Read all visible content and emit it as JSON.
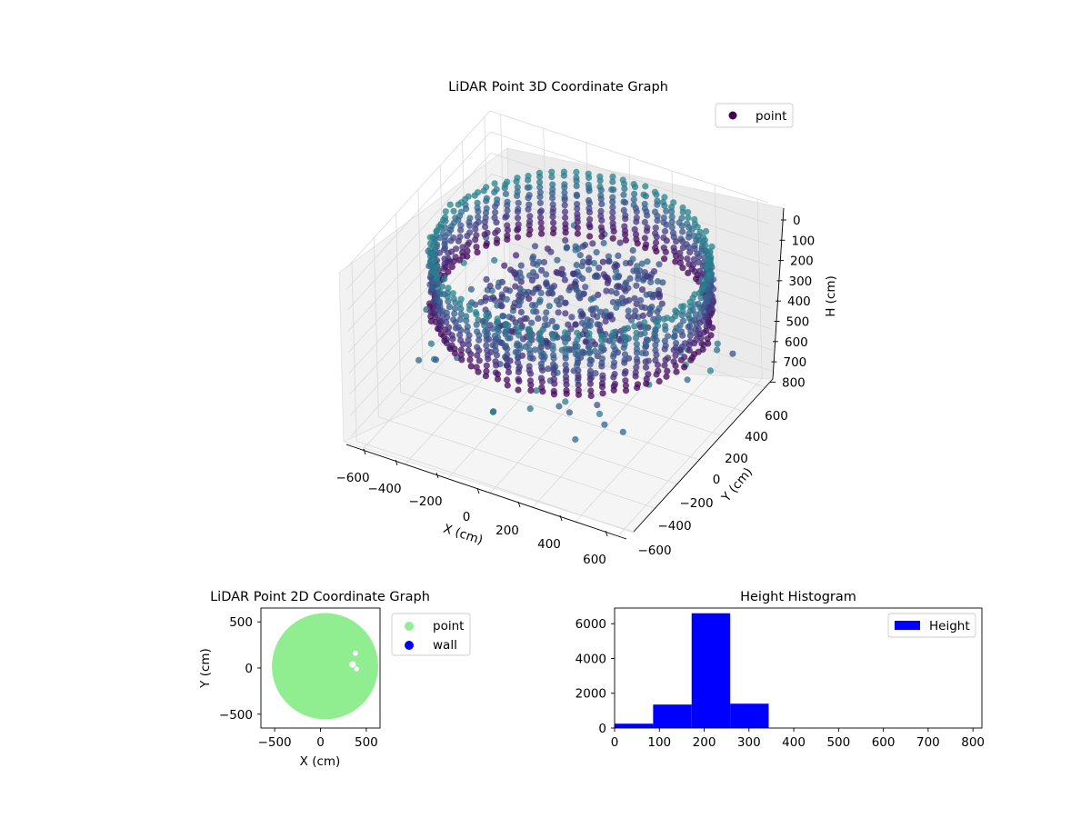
{
  "chart_data": [
    {
      "type": "scatter",
      "projection": "3d",
      "title": "LiDAR Point 3D Coordinate Graph",
      "xlabel": "X (cm)",
      "ylabel": "Y (cm)",
      "zlabel": "H (cm)",
      "xlim": [
        -650,
        650
      ],
      "ylim": [
        -650,
        650
      ],
      "zlim": [
        0,
        850
      ],
      "z_inverted": true,
      "xticks": [
        -600,
        -400,
        -200,
        0,
        200,
        400,
        600
      ],
      "yticks": [
        -600,
        -400,
        -200,
        0,
        200,
        400,
        600
      ],
      "zticks": [
        0,
        100,
        200,
        300,
        400,
        500,
        600,
        700,
        800
      ],
      "grid": true,
      "legend": {
        "placement": "upper-right",
        "entries": [
          {
            "label": "point",
            "color": "#440154"
          }
        ]
      },
      "colormap": "viridis",
      "series": [
        {
          "name": "point",
          "description_shape": "cylindrical wall ring of radius ~580 cm spanning heights ~80-370 cm plus scattered interior points",
          "ring_radius": 580,
          "ring_height_range": [
            80,
            370
          ],
          "ring_center": [
            50,
            20
          ]
        }
      ]
    },
    {
      "type": "scatter",
      "title": "LiDAR Point 2D Coordinate Graph",
      "xlabel": "X (cm)",
      "ylabel": "Y (cm)",
      "xlim": [
        -650,
        650
      ],
      "ylim": [
        -650,
        650
      ],
      "xticks": [
        -500,
        0,
        500
      ],
      "yticks": [
        -500,
        0,
        500
      ],
      "legend": {
        "placement": "outside-upper-right",
        "entries": [
          {
            "label": "point",
            "color": "#90ee90"
          },
          {
            "label": "wall",
            "color": "#0000ff"
          }
        ]
      },
      "series": [
        {
          "name": "point",
          "color": "#90ee90",
          "shape": "filled disc",
          "center": [
            50,
            20
          ],
          "radius": 580
        },
        {
          "name": "wall",
          "color": "#0000ff",
          "points": []
        }
      ]
    },
    {
      "type": "bar",
      "subtype": "histogram",
      "title": "Height Histogram",
      "xlim": [
        0,
        820
      ],
      "ylim": [
        0,
        6900
      ],
      "xticks": [
        0,
        100,
        200,
        300,
        400,
        500,
        600,
        700,
        800
      ],
      "yticks": [
        0,
        2000,
        4000,
        6000
      ],
      "legend": {
        "placement": "upper-right",
        "entries": [
          {
            "label": "Height",
            "color": "#0000ff"
          }
        ]
      },
      "bin_edges": [
        0,
        86,
        172,
        258,
        344,
        430,
        516,
        602,
        688,
        774,
        860
      ],
      "values": [
        250,
        1350,
        6600,
        1400,
        0,
        0,
        0,
        0,
        0,
        0
      ],
      "color": "#0000ff"
    }
  ]
}
